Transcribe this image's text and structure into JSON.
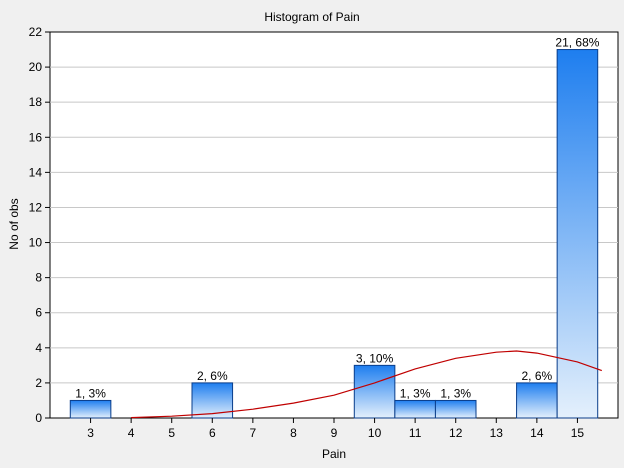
{
  "chart_data": {
    "type": "bar",
    "title": "Histogram of Pain",
    "xlabel": "Pain",
    "ylabel": "No of obs",
    "categories": [
      "3",
      "4",
      "5",
      "6",
      "7",
      "8",
      "9",
      "10",
      "11",
      "12",
      "13",
      "14",
      "15"
    ],
    "values": [
      1,
      0,
      0,
      2,
      0,
      0,
      0,
      3,
      1,
      1,
      0,
      2,
      21
    ],
    "bar_labels": [
      "1, 3%",
      "",
      "",
      "2, 6%",
      "",
      "",
      "",
      "3, 10%",
      "1, 3%",
      "1, 3%",
      "",
      "2, 6%",
      "21, 68%"
    ],
    "ylim": [
      0,
      22
    ],
    "yticks": [
      0,
      2,
      4,
      6,
      8,
      10,
      12,
      14,
      16,
      18,
      20,
      22
    ],
    "grid": true,
    "normal_curve": {
      "x": [
        4,
        5,
        6,
        7,
        8,
        9,
        10,
        11,
        12,
        13,
        13.5,
        14,
        15,
        15.6
      ],
      "y": [
        0.02,
        0.1,
        0.25,
        0.5,
        0.85,
        1.3,
        2.0,
        2.8,
        3.4,
        3.75,
        3.82,
        3.7,
        3.2,
        2.7
      ]
    },
    "colors": {
      "bar_fill_light": "#e4f0fc",
      "bar_fill_dark": "#1e7eef",
      "bar_stroke": "#0a3d8a",
      "curve": "#c00000",
      "grid": "#c8c8c8",
      "background": "#f0f0f0",
      "plot_area": "#ffffff"
    }
  }
}
